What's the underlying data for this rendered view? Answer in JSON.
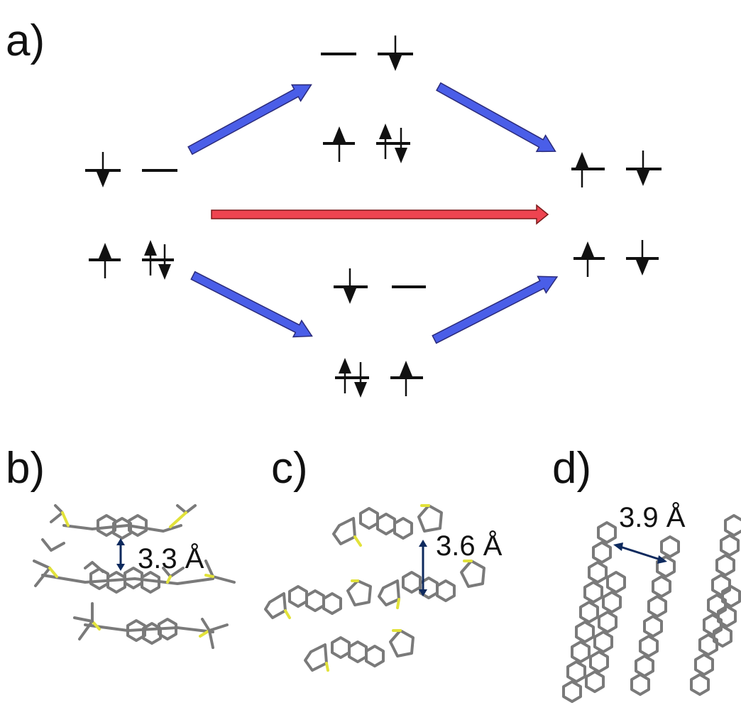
{
  "panels": [
    {
      "id": "a",
      "label": "a)"
    },
    {
      "id": "b",
      "label": "b)"
    },
    {
      "id": "c",
      "label": "c)"
    },
    {
      "id": "d",
      "label": "d)"
    }
  ],
  "distances": {
    "b": "3.3 Å",
    "c": "3.6 Å",
    "d": "3.9 Å"
  },
  "colors": {
    "arrow_blue": "#4a5ee8",
    "arrow_red": "#ee4450",
    "sulfur": "#e2e23a",
    "bond": "#7a7a7a",
    "measure": "#0e2a5e"
  }
}
